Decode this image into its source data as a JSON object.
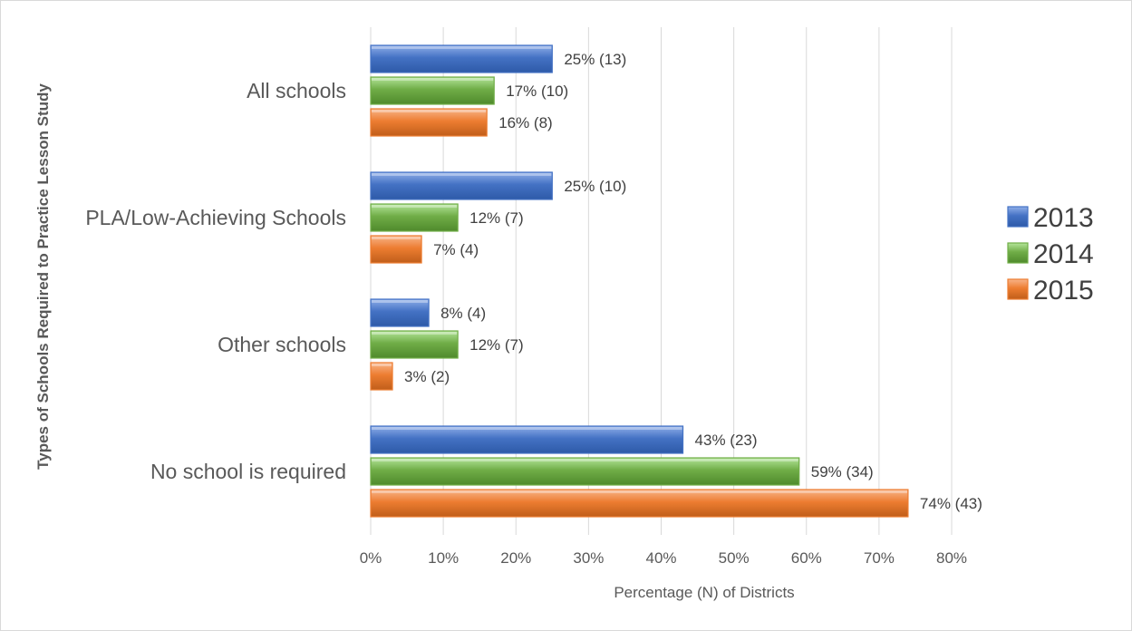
{
  "chart_data": {
    "type": "bar",
    "orientation": "horizontal",
    "categories": [
      "All schools",
      "PLA/Low-Achieving Schools",
      "Other schools",
      "No school is required"
    ],
    "series": [
      {
        "name": "2013",
        "values": [
          25,
          25,
          8,
          43
        ],
        "labels": [
          "25% (13)",
          "25% (10)",
          "8% (4)",
          "43% (23)"
        ],
        "color": "#4472C4"
      },
      {
        "name": "2014",
        "values": [
          17,
          12,
          12,
          59
        ],
        "labels": [
          "17% (10)",
          "12% (7)",
          "12% (7)",
          "59% (34)"
        ],
        "color": "#70AD47"
      },
      {
        "name": "2015",
        "values": [
          16,
          7,
          3,
          74
        ],
        "labels": [
          "16% (8)",
          "7% (4)",
          "3% (2)",
          "74% (43)"
        ],
        "color": "#ED7D31"
      }
    ],
    "xlabel": "Percentage (N) of Districts",
    "ylabel": "Types of Schools Required to Practice Lesson Study",
    "xlim": [
      0,
      80
    ],
    "xticks": [
      "0%",
      "10%",
      "20%",
      "30%",
      "40%",
      "50%",
      "60%",
      "70%",
      "80%"
    ],
    "grid": true,
    "legend": "right"
  }
}
